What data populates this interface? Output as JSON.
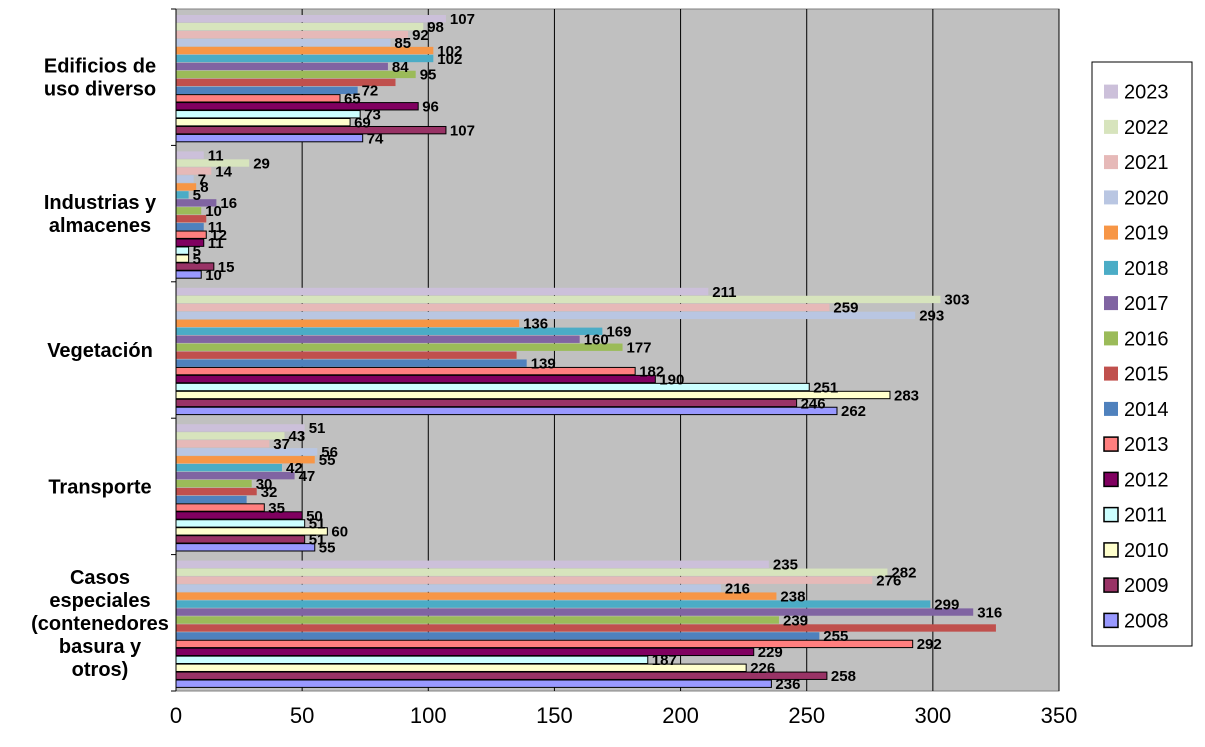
{
  "chart_data": {
    "type": "bar",
    "orientation": "horizontal",
    "title": "",
    "xlabel": "",
    "ylabel": "",
    "xlim": [
      0,
      350
    ],
    "xticks": [
      0,
      50,
      100,
      150,
      200,
      250,
      300,
      350
    ],
    "grid": true,
    "legend_position": "right",
    "plot_background": "#c0c0c0",
    "categories": [
      "Edificios de uso diverso",
      "Industrias y almacenes",
      "Vegetación",
      "Transporte",
      "Casos especiales (contenedores basura y otros)"
    ],
    "category_label_lines": [
      [
        "Edificios de",
        "uso diverso"
      ],
      [
        "Industrias y",
        "almacenes"
      ],
      [
        "Vegetación"
      ],
      [
        "Transporte"
      ],
      [
        "Casos",
        "especiales",
        "(contenedores",
        "basura y",
        "otros)"
      ]
    ],
    "series": [
      {
        "name": "2023",
        "color": "#ccc0da",
        "values": [
          107,
          11,
          211,
          51,
          235
        ]
      },
      {
        "name": "2022",
        "color": "#d7e4bd",
        "values": [
          98,
          29,
          303,
          43,
          282
        ]
      },
      {
        "name": "2021",
        "color": "#e6b9b8",
        "values": [
          92,
          14,
          259,
          37,
          276
        ]
      },
      {
        "name": "2020",
        "color": "#b9c6e2",
        "values": [
          85,
          7,
          293,
          56,
          216
        ]
      },
      {
        "name": "2019",
        "color": "#f79646",
        "values": [
          102,
          8,
          136,
          55,
          238
        ]
      },
      {
        "name": "2018",
        "color": "#4bacc6",
        "values": [
          102,
          5,
          169,
          42,
          299
        ]
      },
      {
        "name": "2017",
        "color": "#8064a2",
        "values": [
          84,
          16,
          160,
          47,
          316
        ]
      },
      {
        "name": "2016",
        "color": "#9bbb59",
        "values": [
          95,
          10,
          177,
          30,
          239
        ]
      },
      {
        "name": "2015",
        "color": "#c0504d",
        "values": [
          87,
          12,
          135,
          32,
          325
        ]
      },
      {
        "name": "2014",
        "color": "#4f81bd",
        "values": [
          72,
          11,
          139,
          28,
          255
        ]
      },
      {
        "name": "2013",
        "color": "#ff7f7f",
        "values": [
          65,
          12,
          182,
          35,
          292
        ]
      },
      {
        "name": "2012",
        "color": "#800060",
        "values": [
          96,
          11,
          190,
          50,
          229
        ]
      },
      {
        "name": "2011",
        "color": "#ccffff",
        "values": [
          73,
          5,
          251,
          51,
          187
        ]
      },
      {
        "name": "2010",
        "color": "#ffffcc",
        "values": [
          69,
          5,
          283,
          60,
          226
        ]
      },
      {
        "name": "2009",
        "color": "#993366",
        "values": [
          107,
          15,
          246,
          51,
          258
        ]
      },
      {
        "name": "2008",
        "color": "#9999ff",
        "values": [
          74,
          10,
          262,
          55,
          236
        ]
      }
    ],
    "data_labels": [
      [
        {
          "year": "2023",
          "text": "107"
        },
        {
          "year": "2022",
          "text": "98"
        },
        {
          "year": "2021",
          "text": "92"
        },
        {
          "year": "2020",
          "text": "85"
        },
        {
          "year": "2019",
          "text": "102"
        },
        {
          "year": "2018",
          "text": "102"
        },
        {
          "year": "2017",
          "text": "84"
        },
        {
          "year": "2016",
          "text": "95"
        },
        {
          "year": "2014",
          "text": "72"
        },
        {
          "year": "2013",
          "text": "65"
        },
        {
          "year": "2012",
          "text": "96"
        },
        {
          "year": "2011",
          "text": "73"
        },
        {
          "year": "2010",
          "text": "69"
        },
        {
          "year": "2009",
          "text": "107"
        },
        {
          "year": "2008",
          "text": "74"
        }
      ],
      [
        {
          "year": "2023",
          "text": "11"
        },
        {
          "year": "2022",
          "text": "29"
        },
        {
          "year": "2021",
          "text": "14"
        },
        {
          "year": "2020",
          "text": "7"
        },
        {
          "year": "2019",
          "text": "8"
        },
        {
          "year": "2018",
          "text": "5"
        },
        {
          "year": "2017",
          "text": "16"
        },
        {
          "year": "2016",
          "text": "10"
        },
        {
          "year": "2014",
          "text": "11"
        },
        {
          "year": "2013",
          "text": "12"
        },
        {
          "year": "2012",
          "text": "11"
        },
        {
          "year": "2011",
          "text": "5"
        },
        {
          "year": "2010",
          "text": "5"
        },
        {
          "year": "2009",
          "text": "15"
        },
        {
          "year": "2008",
          "text": "10"
        }
      ],
      [
        {
          "year": "2023",
          "text": "211"
        },
        {
          "year": "2022",
          "text": "303"
        },
        {
          "year": "2021",
          "text": "259"
        },
        {
          "year": "2020",
          "text": "293"
        },
        {
          "year": "2019",
          "text": "136"
        },
        {
          "year": "2018",
          "text": "169"
        },
        {
          "year": "2017",
          "text": "160"
        },
        {
          "year": "2016",
          "text": "177"
        },
        {
          "year": "2014",
          "text": "139"
        },
        {
          "year": "2013",
          "text": "182"
        },
        {
          "year": "2012",
          "text": "190"
        },
        {
          "year": "2011",
          "text": "251"
        },
        {
          "year": "2010",
          "text": "283"
        },
        {
          "year": "2009",
          "text": "246"
        },
        {
          "year": "2008",
          "text": "262"
        }
      ],
      [
        {
          "year": "2023",
          "text": "51"
        },
        {
          "year": "2022",
          "text": "43"
        },
        {
          "year": "2021",
          "text": "37"
        },
        {
          "year": "2020",
          "text": "56"
        },
        {
          "year": "2019",
          "text": "55"
        },
        {
          "year": "2018",
          "text": "42"
        },
        {
          "year": "2017",
          "text": "47"
        },
        {
          "year": "2016",
          "text": "30"
        },
        {
          "year": "2015",
          "text": "32"
        },
        {
          "year": "2013",
          "text": "35"
        },
        {
          "year": "2012",
          "text": "50"
        },
        {
          "year": "2011",
          "text": "51"
        },
        {
          "year": "2010",
          "text": "60"
        },
        {
          "year": "2009",
          "text": "51"
        },
        {
          "year": "2008",
          "text": "55"
        }
      ],
      [
        {
          "year": "2023",
          "text": "235"
        },
        {
          "year": "2022",
          "text": "282"
        },
        {
          "year": "2021",
          "text": "276"
        },
        {
          "year": "2020",
          "text": "216"
        },
        {
          "year": "2019",
          "text": "238"
        },
        {
          "year": "2018",
          "text": "299"
        },
        {
          "year": "2017",
          "text": "316"
        },
        {
          "year": "2016",
          "text": "239"
        },
        {
          "year": "2014",
          "text": "255"
        },
        {
          "year": "2013",
          "text": "292"
        },
        {
          "year": "2012",
          "text": "229"
        },
        {
          "year": "2011",
          "text": "187"
        },
        {
          "year": "2010",
          "text": "226"
        },
        {
          "year": "2009",
          "text": "258"
        },
        {
          "year": "2008",
          "text": "236"
        }
      ]
    ],
    "legend": [
      "2023",
      "2022",
      "2021",
      "2020",
      "2019",
      "2018",
      "2017",
      "2016",
      "2015",
      "2014",
      "2013",
      "2012",
      "2011",
      "2010",
      "2009",
      "2008"
    ]
  }
}
